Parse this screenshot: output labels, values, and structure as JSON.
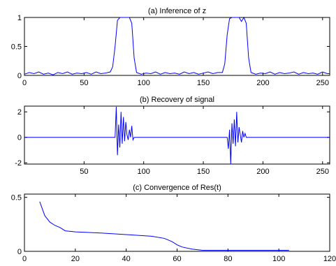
{
  "chart_data": [
    {
      "type": "line",
      "title": "(a) Inference of z",
      "color": "#0000ff",
      "x": [
        0,
        4,
        8,
        12,
        16,
        20,
        24,
        28,
        32,
        36,
        40,
        44,
        48,
        52,
        56,
        60,
        64,
        68,
        72,
        74,
        76,
        78,
        80,
        84,
        88,
        90,
        92,
        94,
        98,
        102,
        106,
        110,
        114,
        118,
        122,
        126,
        130,
        134,
        138,
        142,
        146,
        150,
        154,
        158,
        162,
        166,
        168,
        170,
        172,
        174,
        176,
        180,
        182,
        184,
        186,
        188,
        190,
        194,
        198,
        202,
        206,
        210,
        214,
        218,
        222,
        226,
        230,
        234,
        238,
        242,
        246,
        250,
        254,
        256
      ],
      "values": [
        0.02,
        0.05,
        0.03,
        0.06,
        0.02,
        0.04,
        0.01,
        0.05,
        0.03,
        0.06,
        0.02,
        0.04,
        0.03,
        0.05,
        0.02,
        0.06,
        0.03,
        0.04,
        0.06,
        0.15,
        0.5,
        0.95,
        1,
        1,
        1,
        0.9,
        0.3,
        0.05,
        0.02,
        0.04,
        0.03,
        0.06,
        0.02,
        0.05,
        0.03,
        0.04,
        0.02,
        0.06,
        0.03,
        0.05,
        0.02,
        0.04,
        0.06,
        0.03,
        0.05,
        0.05,
        0.2,
        0.7,
        0.98,
        1,
        1,
        1,
        0.93,
        1,
        0.9,
        0.3,
        0.05,
        0.02,
        0.04,
        0.03,
        0.06,
        0.02,
        0.05,
        0.03,
        0.04,
        0.06,
        0.02,
        0.05,
        0.03,
        0.04,
        0.02,
        0.06,
        0.03,
        0.03
      ],
      "xlim": [
        0,
        256
      ],
      "xticks": [
        0,
        50,
        100,
        150,
        200,
        250
      ],
      "ylim": [
        0,
        1
      ],
      "yticks": [
        0,
        0.5,
        1
      ]
    },
    {
      "type": "line",
      "title": "(b) Recovery of signal",
      "color": "#0000ff",
      "x": [
        0,
        76,
        77,
        78,
        79,
        80,
        81,
        82,
        83,
        84,
        85,
        86,
        87,
        88,
        89,
        90,
        91,
        92,
        170,
        171,
        172,
        173,
        174,
        175,
        176,
        177,
        178,
        179,
        180,
        181,
        182,
        183,
        184,
        185,
        186,
        256
      ],
      "values": [
        0,
        0,
        2.4,
        -1.4,
        1.0,
        -0.8,
        2.0,
        -0.5,
        1.6,
        -0.3,
        1.2,
        0.2,
        -0.2,
        0.6,
        0,
        0.9,
        -0.2,
        0,
        0,
        -0.9,
        0.6,
        -2.1,
        1.1,
        -0.5,
        1.4,
        -0.7,
        2.0,
        -0.4,
        0.8,
        0.2,
        -0.4,
        0.5,
        0,
        0.3,
        0,
        0
      ],
      "xlim": [
        0,
        256
      ],
      "xticks": [
        50,
        100,
        150,
        200,
        250
      ],
      "ylim": [
        -2.1,
        2.45
      ],
      "yticks": [
        -2,
        0,
        2
      ]
    },
    {
      "type": "line",
      "title": "(c) Convergence of Res(t)",
      "color": "#0000ff",
      "x": [
        6,
        8,
        10,
        12,
        14,
        16,
        20,
        30,
        40,
        50,
        55,
        58,
        60,
        62,
        66,
        70,
        80,
        104
      ],
      "values": [
        0.46,
        0.33,
        0.27,
        0.24,
        0.22,
        0.19,
        0.18,
        0.17,
        0.155,
        0.14,
        0.12,
        0.09,
        0.06,
        0.04,
        0.02,
        0.01,
        0.01,
        0.01
      ],
      "xlim": [
        0,
        120
      ],
      "xticks": [
        0,
        20,
        40,
        60,
        80,
        100,
        120
      ],
      "ylim": [
        0,
        0.53
      ],
      "yticks": [
        0,
        0.5
      ]
    }
  ]
}
